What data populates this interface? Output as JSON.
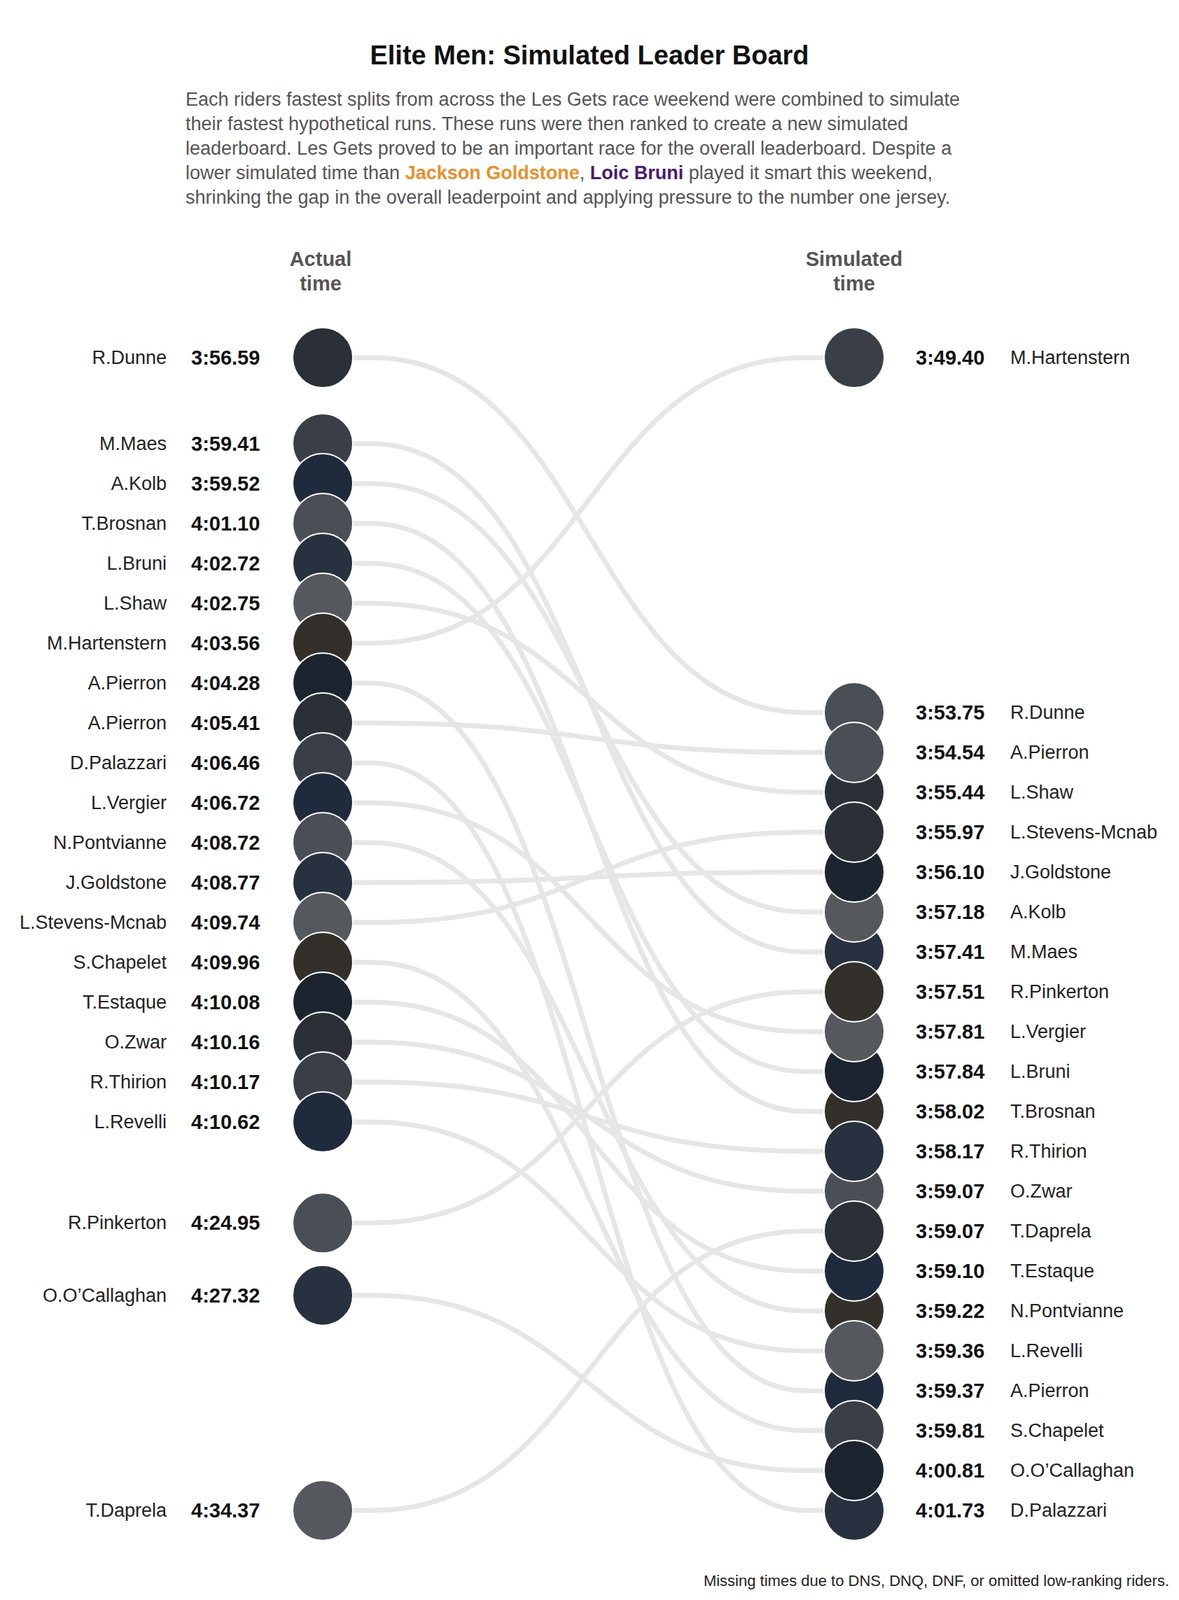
{
  "chart_data": {
    "type": "slope",
    "title": "Elite Men: Simulated Leader Board",
    "subtitle": [
      {
        "text": "Each riders fastest splits from across the Les Gets race weekend were combined to simulate their fastest hypothetical runs. These runs were then ranked to create a new simulated leaderboard. Les Gets proved to be an important race for the overall leaderboard. Despite a lower simulated time than "
      },
      {
        "text": "Jackson Goldstone",
        "color": "#e8902f"
      },
      {
        "text": ", "
      },
      {
        "text": "Loic Bruni",
        "color": "#4b1a6e"
      },
      {
        "text": " played it smart this weekend, shrinking the gap in the overall leaderpoint and applying pressure to the number one jersey."
      }
    ],
    "categories": [
      "R.Dunne",
      "M.Maes",
      "A.Kolb",
      "T.Brosnan",
      "L.Bruni",
      "L.Shaw",
      "M.Hartenstern",
      "A.Pierron",
      "A.Pierron",
      "D.Palazzari",
      "L.Vergier",
      "N.Pontvianne",
      "J.Goldstone",
      "L.Stevens-Mcnab",
      "S.Chapelet",
      "T.Estaque",
      "O.Zwar",
      "R.Thirion",
      "L.Revelli",
      "R.Pinkerton",
      "O.O’Callaghan",
      "T.Daprela"
    ],
    "series": [
      {
        "name": "Actual time",
        "values": [
          236.59,
          239.41,
          239.52,
          241.1,
          242.72,
          242.75,
          243.56,
          244.28,
          245.41,
          246.46,
          246.72,
          248.72,
          248.77,
          249.74,
          249.96,
          250.08,
          250.16,
          250.17,
          250.62,
          264.95,
          267.32,
          274.37
        ],
        "value_labels": [
          "3:56.59",
          "3:59.41",
          "3:59.52",
          "4:01.10",
          "4:02.72",
          "4:02.75",
          "4:03.56",
          "4:04.28",
          "4:05.41",
          "4:06.46",
          "4:06.72",
          "4:08.72",
          "4:08.77",
          "4:09.74",
          "4:09.96",
          "4:10.08",
          "4:10.16",
          "4:10.17",
          "4:10.62",
          "4:24.95",
          "4:27.32",
          "4:34.37"
        ]
      },
      {
        "name": "Simulated time",
        "values": [
          233.75,
          237.41,
          237.18,
          238.02,
          237.84,
          235.44,
          229.4,
          239.37,
          234.54,
          241.73,
          237.81,
          239.22,
          236.1,
          235.97,
          239.81,
          239.1,
          239.07,
          238.17,
          239.36,
          237.51,
          240.81,
          239.07
        ],
        "value_labels": [
          "3:53.75",
          "3:57.41",
          "3:57.18",
          "3:58.02",
          "3:57.84",
          "3:55.44",
          "3:49.40",
          "3:59.37",
          "3:54.54",
          "4:01.73",
          "3:57.81",
          "3:59.22",
          "3:56.10",
          "3:55.97",
          "3:59.81",
          "3:59.10",
          "3:59.07",
          "3:58.17",
          "3:59.36",
          "3:57.51",
          "4:00.81",
          "3:59.07"
        ]
      }
    ],
    "color": "#e6e6e6",
    "footnote": "Missing times due to DNS, DNQ, DNF, or omitted low-ranking riders."
  }
}
